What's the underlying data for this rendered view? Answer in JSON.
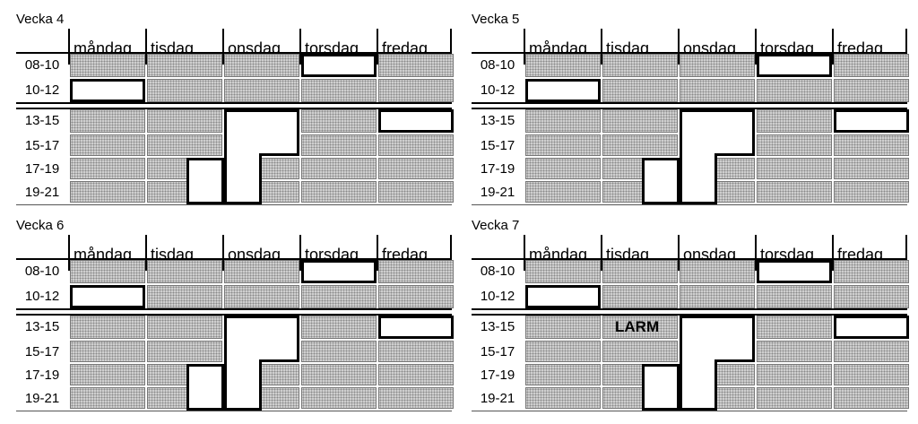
{
  "days": [
    "måndag",
    "tisdag",
    "onsdag",
    "torsdag",
    "fredag"
  ],
  "times": [
    "08-10",
    "10-12",
    "13-15",
    "15-17",
    "17-19",
    "19-21"
  ],
  "weeks": [
    {
      "title": "Vecka 4",
      "note": ""
    },
    {
      "title": "Vecka 5",
      "note": ""
    },
    {
      "title": "Vecka 6",
      "note": ""
    },
    {
      "title": "Vecka 7",
      "note": "LARM"
    }
  ]
}
